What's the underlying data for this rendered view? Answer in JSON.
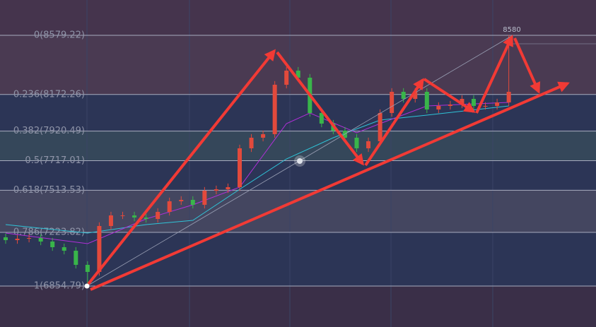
{
  "chart_data": {
    "type": "candlestick",
    "ylim": [
      6573.0,
      8822.1
    ],
    "up_color": "#e24a3c",
    "down_color": "#39b54a",
    "fib_levels": [
      {
        "value": 8579.22,
        "label": "0(8579.22)"
      },
      {
        "value": 8172.26,
        "label": "0.236(8172.26)"
      },
      {
        "value": 7920.49,
        "label": "0.382(7920.49)"
      },
      {
        "value": 7717.01,
        "label": "0.5(7717.01)"
      },
      {
        "value": 7513.53,
        "label": "0.618(7513.53)"
      },
      {
        "value": 7223.82,
        "label": "0.786(7223.82)"
      },
      {
        "value": 6854.79,
        "label": "1(6854.79)"
      }
    ],
    "open": [
      7190.0,
      7170.5,
      7180.2,
      7185.1,
      7160.8,
      7121.9,
      7097.7,
      7000.5,
      6951.9,
      7267.7,
      7340.5,
      7340.5,
      7326.0,
      7316.2,
      7364.8,
      7437.7,
      7447.4,
      7413.4,
      7510.5,
      7520.3,
      7534.8,
      7802.0,
      7874.9,
      7899.2,
      8239.2,
      8336.3,
      8287.8,
      8044.9,
      7972.0,
      7923.4,
      7874.9,
      7802.0,
      7850.6,
      8044.9,
      8190.6,
      8142.0,
      8190.6,
      8069.2,
      8093.5,
      8103.2,
      8142.0,
      8093.5,
      8093.5,
      8117.7
    ],
    "high": [
      7215.0,
      7205.2,
      7210.1,
      7210.1,
      7185.8,
      7146.9,
      7122.7,
      7025.5,
      7292.7,
      7365.5,
      7365.5,
      7365.5,
      7351.0,
      7389.8,
      7462.7,
      7472.4,
      7472.4,
      7535.5,
      7545.3,
      7559.8,
      7827.0,
      7899.9,
      7924.2,
      8264.2,
      8361.3,
      8361.3,
      8312.8,
      8069.9,
      7997.0,
      7948.4,
      7899.9,
      7875.6,
      8069.9,
      8215.6,
      8215.6,
      8215.6,
      8215.6,
      8118.5,
      8128.2,
      8167.0,
      8167.0,
      8118.5,
      8142.7,
      8580
    ],
    "low": [
      7145.5,
      7145.5,
      7155.2,
      7135.8,
      7096.9,
      7072.7,
      6975.5,
      6854.79,
      6926.9,
      7242.7,
      7315.5,
      7301.0,
      7291.2,
      7291.2,
      7339.8,
      7412.7,
      7388.4,
      7388.4,
      7485.5,
      7495.3,
      7509.8,
      7777.0,
      7849.9,
      7874.2,
      8214.2,
      8262.8,
      8019.9,
      7947.0,
      7898.4,
      7849.9,
      7777.0,
      7777.0,
      7825.6,
      8019.9,
      8117.0,
      8117.0,
      8044.2,
      8044.2,
      8068.5,
      8078.2,
      8068.5,
      8068.5,
      8068.5,
      8092.7
    ],
    "close": [
      7170.5,
      7180.2,
      7185.1,
      7160.8,
      7121.9,
      7097.7,
      7000.5,
      6951.9,
      7267.7,
      7340.5,
      7340.5,
      7326.0,
      7316.2,
      7364.8,
      7437.7,
      7447.4,
      7413.4,
      7510.5,
      7520.3,
      7534.8,
      7802.0,
      7874.9,
      7899.2,
      8239.2,
      8336.3,
      8287.8,
      8044.9,
      7972.0,
      7923.4,
      7874.9,
      7802.0,
      7850.6,
      8044.9,
      8190.6,
      8142.0,
      8190.6,
      8069.2,
      8093.5,
      8103.2,
      8142.0,
      8093.5,
      8093.5,
      8117.7,
      8190.6
    ],
    "lines": [
      {
        "color": "#2fc4d8",
        "x": [
          0,
          7,
          12,
          16,
          20,
          24,
          28,
          32,
          36,
          43
        ],
        "values": [
          7277.4,
          7219.1,
          7277.4,
          7306.5,
          7520.3,
          7729.1,
          7874.9,
          7996.3,
          8030.3,
          8093.5
        ]
      },
      {
        "color": "#b02fd8",
        "x": [
          0,
          7,
          12,
          16,
          20,
          24,
          26,
          30,
          32,
          36,
          43
        ],
        "values": [
          7219.1,
          7146.2,
          7316.2,
          7413.4,
          7534.8,
          7972.0,
          8044.9,
          7908.9,
          7972.0,
          8093.5,
          8117.7
        ]
      }
    ]
  }
}
